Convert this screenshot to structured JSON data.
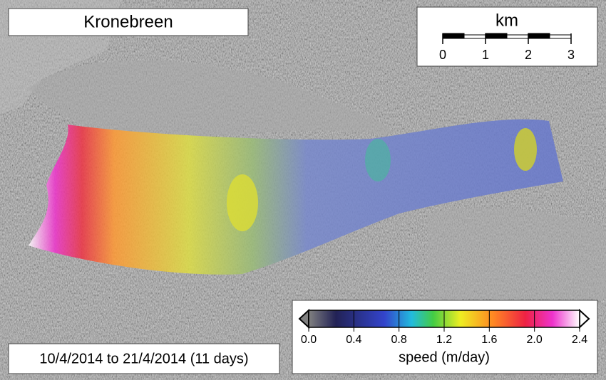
{
  "title": "Kronebreen",
  "scale_bar": {
    "unit": "km",
    "ticks": [
      "0",
      "1",
      "2",
      "3"
    ]
  },
  "colorbar": {
    "ticks": [
      "0.0",
      "0.4",
      "0.8",
      "1.2",
      "1.6",
      "2.0",
      "2.4"
    ],
    "label": "speed (m/day)"
  },
  "date_range": "10/4/2014 to 21/4/2014 (11 days)"
}
